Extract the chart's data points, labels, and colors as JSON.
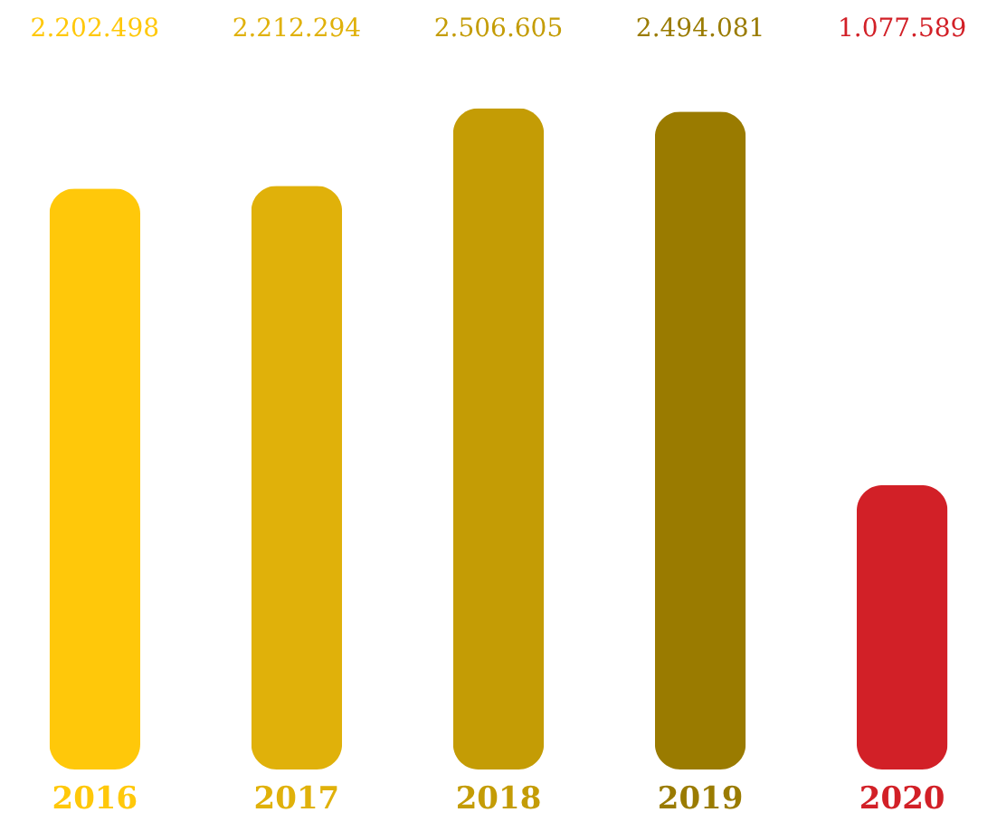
{
  "chart_data": {
    "type": "bar",
    "categories": [
      "2016",
      "2017",
      "2018",
      "2019",
      "2020"
    ],
    "values": [
      2202498,
      2212294,
      2506605,
      2494081,
      1077589
    ],
    "value_labels": [
      "2.202.498",
      "2.212.294",
      "2.506.605",
      "2.494.081",
      "1.077.589"
    ],
    "colors": [
      "#ffc80a",
      "#e0b10a",
      "#c49c05",
      "#9a7b00",
      "#d22027"
    ],
    "grid": false
  }
}
